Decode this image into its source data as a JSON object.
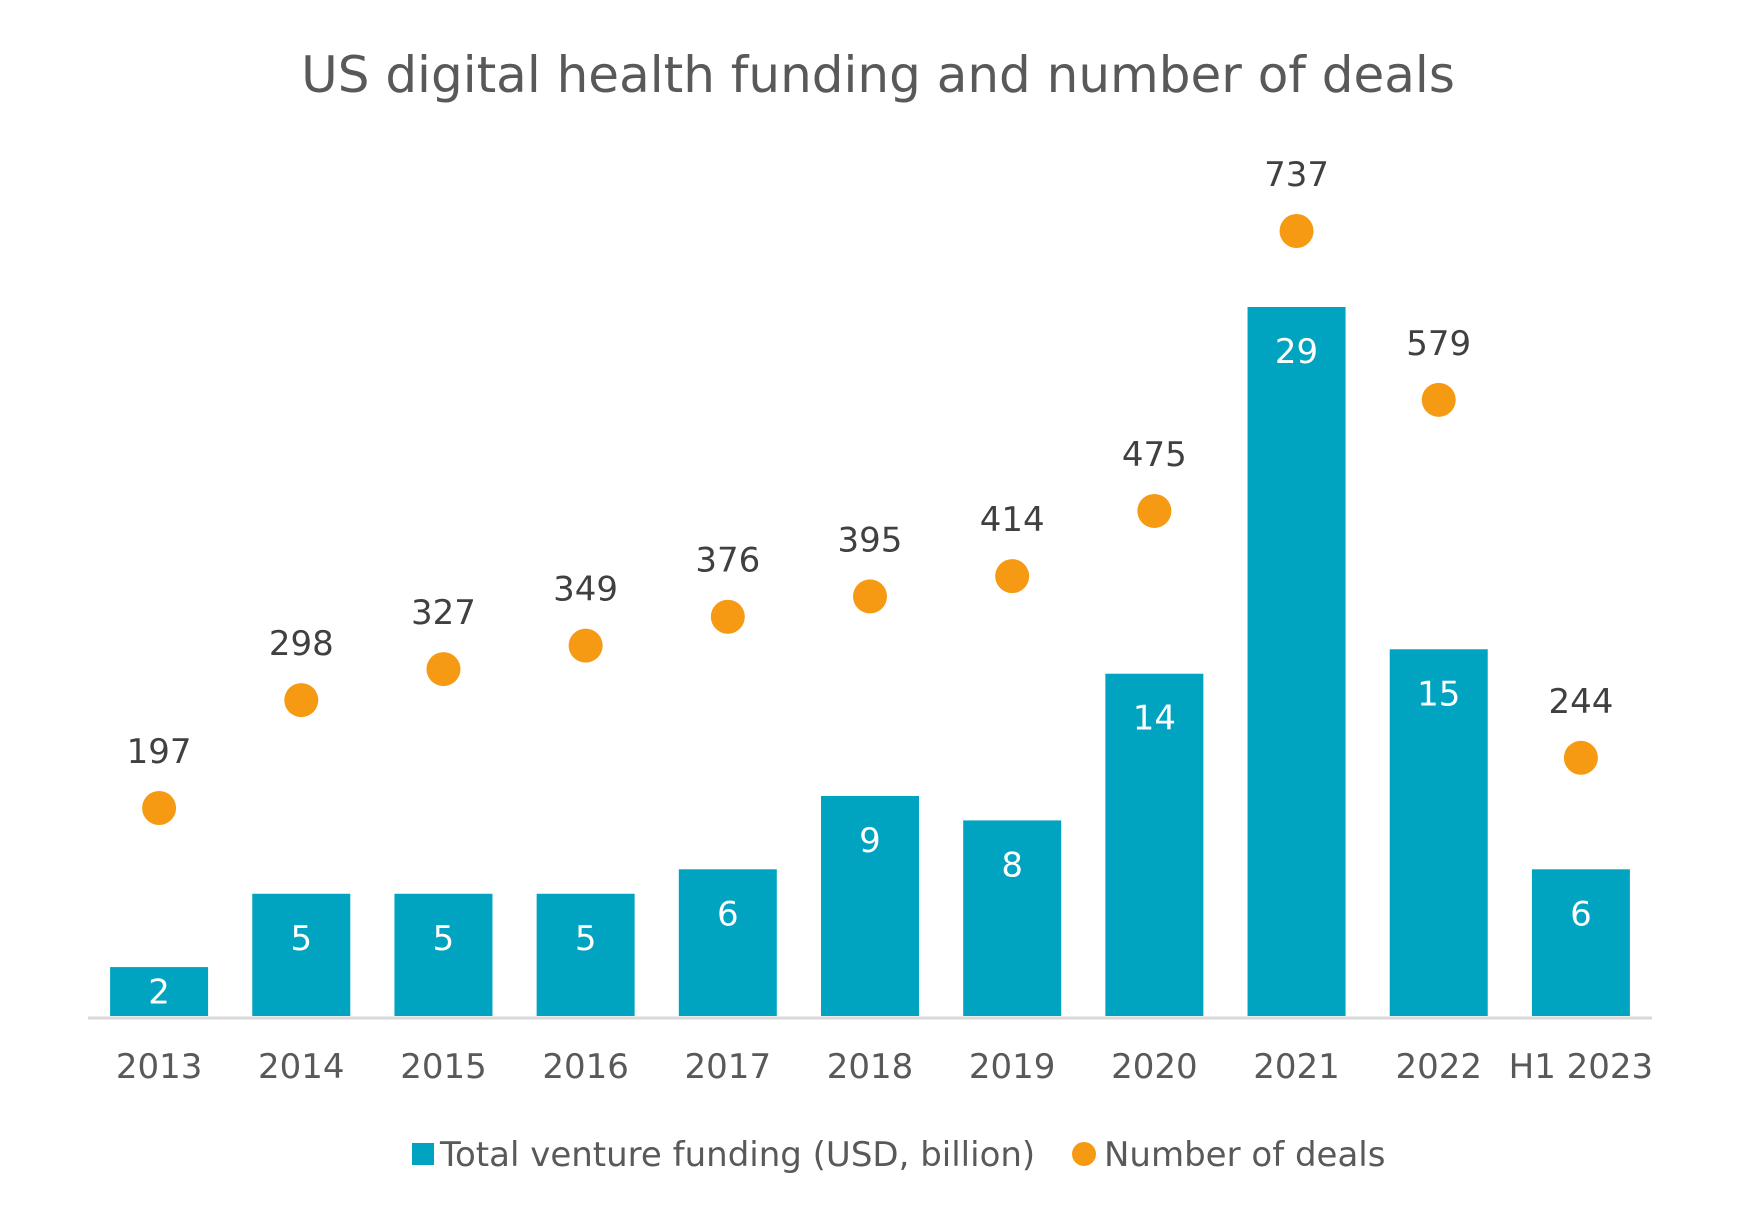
{
  "chart_data": {
    "type": "bar",
    "title": "US digital health funding and number of deals",
    "categories": [
      "2013",
      "2014",
      "2015",
      "2016",
      "2017",
      "2018",
      "2019",
      "2020",
      "2021",
      "2022",
      "H1 2023"
    ],
    "series": [
      {
        "name": "Total venture funding (USD, billion)",
        "type": "bar",
        "values": [
          2,
          5,
          5,
          5,
          6,
          9,
          8,
          14,
          29,
          15,
          6
        ],
        "color": "#00a3c0"
      },
      {
        "name": "Number of deals",
        "type": "scatter",
        "values": [
          197,
          298,
          327,
          349,
          376,
          395,
          414,
          475,
          737,
          579,
          244
        ],
        "color": "#f59a12"
      }
    ],
    "bar_ylim": [
      0,
      32
    ],
    "dot_ylim": [
      0,
      900
    ],
    "legend_position": "bottom",
    "grid": false
  }
}
